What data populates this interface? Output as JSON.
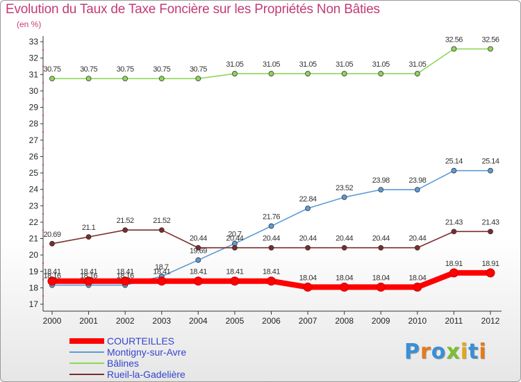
{
  "title": "Evolution du Taux de Taxe Foncière sur les Propriétés Non Bâties",
  "unit_label": "(en %)",
  "logo": {
    "text": "Proxiti",
    "colors": [
      "#3a8fd6",
      "#e67a1a",
      "#3a8fd6",
      "#7cbf2f",
      "#e0a81a",
      "#3a8fd6",
      "#e67a1a"
    ]
  },
  "chart_data": {
    "type": "line",
    "x": [
      "2000",
      "2001",
      "2002",
      "2003",
      "2004",
      "2005",
      "2006",
      "2007",
      "2008",
      "2009",
      "2010",
      "2011",
      "2012"
    ],
    "ylim": [
      17,
      33
    ],
    "yticks": [
      "17",
      "18",
      "19",
      "20",
      "21",
      "22",
      "23",
      "24",
      "25",
      "26",
      "27",
      "28",
      "29",
      "30",
      "31",
      "32",
      "33"
    ],
    "grid": false,
    "legend_placement": "bottom-left",
    "series": [
      {
        "name": "COURTEILLES",
        "color": "#ff0000",
        "values": [
          18.41,
          18.41,
          18.41,
          18.41,
          18.41,
          18.41,
          18.41,
          18.04,
          18.04,
          18.04,
          18.04,
          18.91,
          18.91
        ],
        "labels": [
          "18.41",
          "18.41",
          "18.41",
          "18.41",
          "18.41",
          "18.41",
          "18.41",
          "18.04",
          "18.04",
          "18.04",
          "18.04",
          "18.91",
          "18.91"
        ]
      },
      {
        "name": "Montigny-sur-Avre",
        "color": "#5b9bd5",
        "values": [
          18.16,
          18.16,
          18.16,
          18.7,
          19.69,
          20.7,
          21.76,
          22.84,
          23.52,
          23.98,
          23.98,
          25.14,
          25.14
        ],
        "labels": [
          "18.16",
          "18.16",
          "18.16",
          "18.7",
          "19.69",
          "20.7",
          "21.76",
          "22.84",
          "23.52",
          "23.98",
          "23.98",
          "25.14",
          "25.14"
        ]
      },
      {
        "name": "Bâlines",
        "color": "#8ed65a",
        "values": [
          30.75,
          30.75,
          30.75,
          30.75,
          30.75,
          31.05,
          31.05,
          31.05,
          31.05,
          31.05,
          31.05,
          32.56,
          32.56
        ],
        "labels": [
          "30.75",
          "30.75",
          "30.75",
          "30.75",
          "30.75",
          "31.05",
          "31.05",
          "31.05",
          "31.05",
          "31.05",
          "31.05",
          "32.56",
          "32.56"
        ]
      },
      {
        "name": "Rueil-la-Gadelière",
        "color": "#7b2c2c",
        "values": [
          20.69,
          21.1,
          21.52,
          21.52,
          20.44,
          20.44,
          20.44,
          20.44,
          20.44,
          20.44,
          20.44,
          21.43,
          21.43
        ],
        "labels": [
          "20.69",
          "21.1",
          "21.52",
          "21.52",
          "20.44",
          "20.44",
          "20.44",
          "20.44",
          "20.44",
          "20.44",
          "20.44",
          "21.43",
          "21.43"
        ]
      }
    ]
  }
}
